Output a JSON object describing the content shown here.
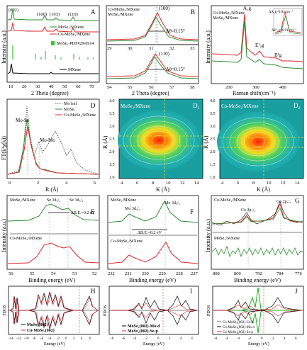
{
  "panels": {
    "A": {
      "letter": "A",
      "peaks": [
        "(002)",
        "(100)",
        "(103)",
        "(110)"
      ],
      "legend": [
        "MoSe₂/MXene",
        "Co-MoSe₂/MXene",
        "MoSe₂-PDF#29-0914",
        "MXene"
      ],
      "xlabel": "2 Theta (degree)",
      "ylabel": "Intensity (a.u.)",
      "xticks": [
        "10",
        "20",
        "30",
        "40",
        "50",
        "60",
        "70"
      ],
      "colors": [
        "#2e8b2e",
        "#e0262a",
        "#33cc33",
        "#000000"
      ]
    },
    "B": {
      "letter": "B",
      "legend": [
        "Co-MoSe₂/MXene",
        "MoSe₂/MXene"
      ],
      "peak_top": "(100)",
      "peak_bottom": "(110)",
      "delta_top": "Δθ=0.15°",
      "delta_bottom": "Δθ=0.15°",
      "xticks_top": [
        "29",
        "30",
        "31",
        "32",
        "33"
      ],
      "xticks_bottom": [
        "54",
        "55",
        "56",
        "57",
        "58"
      ],
      "xlabel": "2 Theta (degree)"
    },
    "C": {
      "letter": "C",
      "legend": [
        "Co-MoSe₂/MXene",
        "MoSe₂/MXene"
      ],
      "a1g": "A₁g",
      "e2g": "E¹₂g",
      "b2g": "B²g",
      "shift1": "ΔA₁g=0.91 cm⁻¹",
      "shift2": "ΔE¹₂g=0.91 cm⁻¹",
      "xticks": [
        "200",
        "300",
        "400"
      ],
      "xlabel": "Raman shift(cm⁻¹)",
      "ylabel": "Intensity (a.u.)"
    },
    "D": {
      "letter": "D",
      "legend": [
        "Mo foil",
        "MoSe₂",
        "Co-MoSe₂/MXene"
      ],
      "peak1": "Mo-Se",
      "peak2": "Mo-Mo",
      "xticks": [
        "0",
        "2",
        "4",
        "6"
      ],
      "xlabel": "R (Å)",
      "ylabel": "FT(k³χ(k))"
    },
    "D1": {
      "letter": "D₁",
      "title": "MoSe₂/MXene",
      "xticks": [
        "4",
        "6",
        "8",
        "10",
        "12",
        "14"
      ],
      "yticks": [
        "4.0",
        "3.5",
        "3.0",
        "2.5",
        "2.0",
        "1.5",
        "1.0"
      ],
      "xlabel": "K (Å)",
      "ylabel": "R (Å)"
    },
    "D2": {
      "letter": "D₂",
      "title": "Co-MoSe₂/MXene",
      "xticks": [
        "4",
        "6",
        "8",
        "10",
        "12",
        "14"
      ],
      "yticks": [
        "4.0",
        "3.5",
        "3.0",
        "2.5",
        "2.0",
        "1.5",
        "1.0"
      ],
      "xlabel": "K (Å)",
      "ylabel": "R (Å)"
    },
    "E": {
      "letter": "E",
      "top_label": "MoSe₂/MXene",
      "bottom_label": "Co-MoSe₂/MXene",
      "peak1": "Se 3d₅/₂",
      "peak2": "Se 3d₃/₂",
      "shift": "ΔB.E.=0.2 eV",
      "xticks": [
        "56",
        "55",
        "54",
        "53",
        "52"
      ],
      "xlabel": "Binding energy (eV)",
      "ylabel": "Intensity (a.u.)"
    },
    "F": {
      "letter": "F",
      "top_label": "MoSe₂/MXene",
      "bottom_label": "Co-MoSe₂/MXene",
      "peak1": "Mo 3d₃/₂",
      "peak2": "Mo 3d₅/₂",
      "shift": "ΔB.E.=0.2 eV",
      "xticks": [
        "232",
        "231",
        "230",
        "229",
        "228",
        "227"
      ],
      "xlabel": "Binding energy (eV)"
    },
    "G": {
      "letter": "G",
      "top_label": "Co-MoSe₂/MXene",
      "bottom_label": "MoSe₂/MXene",
      "peak1": "Co 2p₁/₂",
      "peak2": "Co 2p₃/₂",
      "xticks": [
        "808",
        "800",
        "792",
        "784",
        "776"
      ],
      "xlabel": "Binding energy (eV)",
      "ylabel": "Intensity (a.u.)"
    },
    "H": {
      "letter": "H",
      "legend": [
        "MoSe₂(002)",
        "Co-MoSe₂(002)"
      ],
      "xticks": [
        "-14",
        "-12",
        "-10",
        "-8",
        "-6",
        "-4",
        "-2",
        "0",
        "2",
        "4",
        "6"
      ],
      "xlabel": "Energy (eV)",
      "ylabel": "TDOS"
    },
    "I": {
      "letter": "I",
      "legend": [
        "MoSe₂(002)-Mo-d",
        "MoSe₂(002)-Se-p"
      ],
      "xticks": [
        "-8",
        "-6",
        "-4",
        "-2",
        "0",
        "2",
        "4",
        "6"
      ],
      "xlabel": "Energy (eV)",
      "ylabel": "PDOS"
    },
    "J": {
      "letter": "J",
      "legend": [
        "Co-MoSe₂(002)-Co-d",
        "Co-MoSe₂(002)-Mo-d",
        "Co-MoSe₂(002)-Se-p"
      ],
      "xticks": [
        "-8",
        "-6",
        "-4",
        "-2",
        "0",
        "2",
        "4",
        "6"
      ],
      "xlabel": "Energy (eV)",
      "ylabel": "PDOS"
    }
  }
}
